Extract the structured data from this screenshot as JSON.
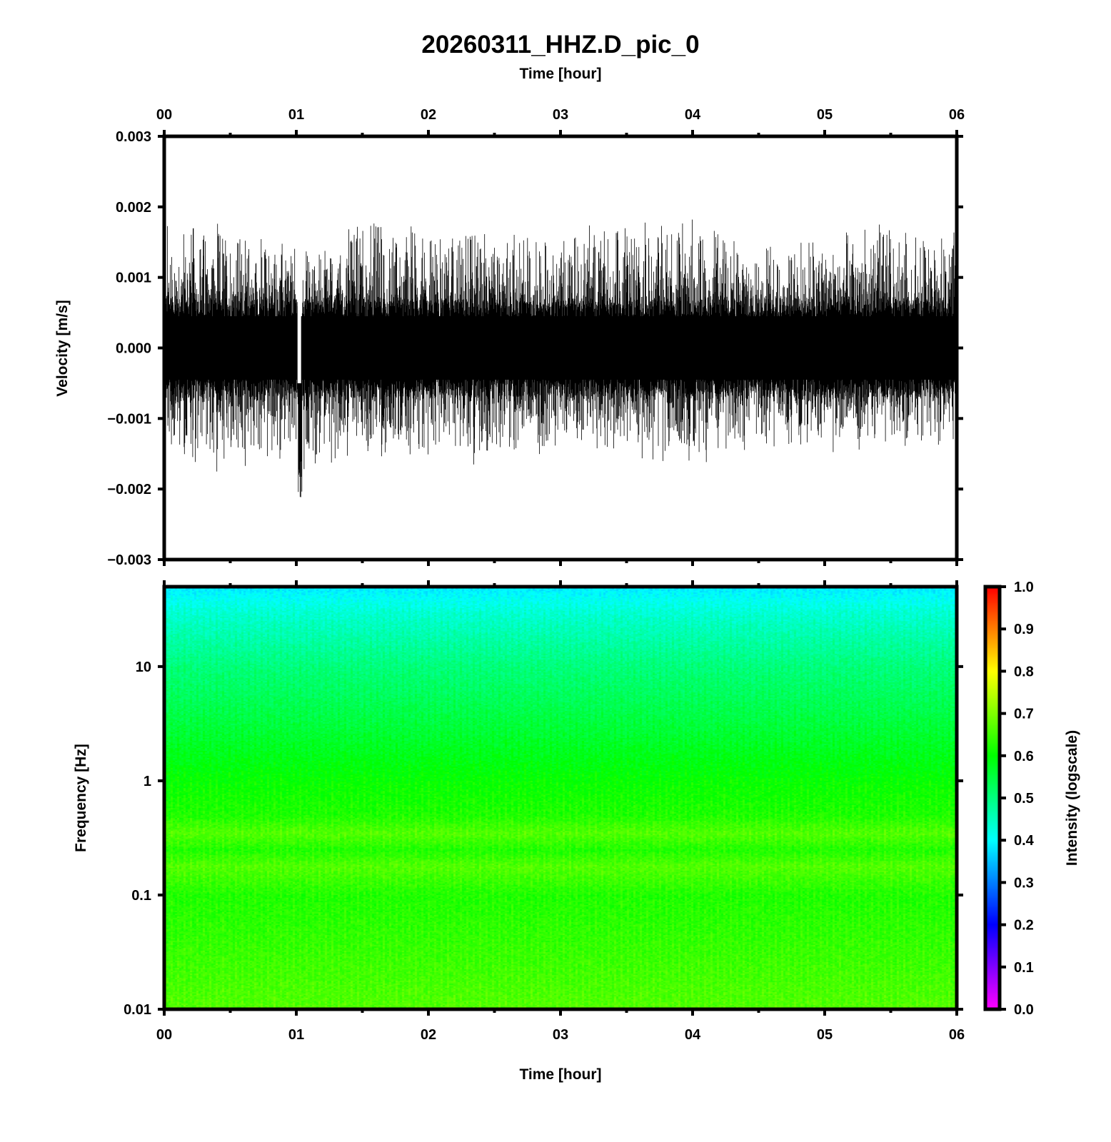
{
  "chart_data": [
    {
      "type": "line",
      "panel": "waveform",
      "title": "20260311_HHZ.D_pic_0",
      "xlabel_top": "Time [hour]",
      "ylabel": "Velocity [m/s]",
      "xlim": [
        0,
        6
      ],
      "ylim": [
        -0.003,
        0.003
      ],
      "x_tick_values": [
        0,
        1,
        2,
        3,
        4,
        5,
        6
      ],
      "x_tick_labels": [
        "00",
        "01",
        "02",
        "03",
        "04",
        "05",
        "06"
      ],
      "y_tick_values": [
        0.003,
        0.002,
        0.001,
        0.0,
        -0.001,
        -0.002,
        -0.003
      ],
      "y_tick_labels": [
        "0.003",
        "0.002",
        "0.001",
        "0.000",
        "−0.001",
        "−0.002",
        "−0.003"
      ],
      "noise_envelope": {
        "hours": [
          0,
          0.5,
          1.0,
          1.03,
          1.1,
          1.5,
          2,
          2.5,
          3,
          3.5,
          4,
          4.5,
          5,
          5.5,
          6
        ],
        "max": [
          0.0016,
          0.0015,
          0.0012,
          0.0011,
          0.0012,
          0.0016,
          0.0015,
          0.0014,
          0.0014,
          0.0015,
          0.0016,
          0.0013,
          0.0014,
          0.0015,
          0.0014
        ],
        "min": [
          -0.0013,
          -0.0016,
          -0.0013,
          -0.0022,
          -0.0016,
          -0.0013,
          -0.0013,
          -0.0014,
          -0.0012,
          -0.0013,
          -0.0014,
          -0.0012,
          -0.0012,
          -0.0012,
          -0.0011
        ]
      },
      "event": {
        "time_hour": 1.03,
        "min_velocity": -0.0022
      }
    },
    {
      "type": "heatmap",
      "panel": "spectrogram",
      "xlabel": "Time [hour]",
      "ylabel": "Frequency [Hz]",
      "xlim": [
        0,
        6
      ],
      "ylim": [
        0.01,
        50
      ],
      "yscale": "log",
      "x_tick_labels": [
        "00",
        "01",
        "02",
        "03",
        "04",
        "05",
        "06"
      ],
      "y_tick_values": [
        10,
        1,
        0.1,
        0.01
      ],
      "y_tick_labels": [
        "10",
        "1",
        "0.1",
        "0.01"
      ],
      "intensity_profile": {
        "frequency_hz": [
          50,
          30,
          10,
          3,
          1,
          0.5,
          0.35,
          0.25,
          0.18,
          0.1,
          0.03,
          0.01
        ],
        "intensity": [
          0.38,
          0.43,
          0.5,
          0.55,
          0.6,
          0.62,
          0.66,
          0.62,
          0.66,
          0.62,
          0.64,
          0.66
        ]
      },
      "colorbar": {
        "label": "Intensity (logscale)",
        "range": [
          0.0,
          1.0
        ],
        "tick_labels": [
          "1.0",
          "0.9",
          "0.8",
          "0.7",
          "0.6",
          "0.5",
          "0.4",
          "0.3",
          "0.2",
          "0.1",
          "0.0"
        ],
        "colormap": [
          "#ff00ff",
          "#0000ff",
          "#00ffff",
          "#00ff00",
          "#ffff00",
          "#ff0000"
        ]
      }
    }
  ]
}
